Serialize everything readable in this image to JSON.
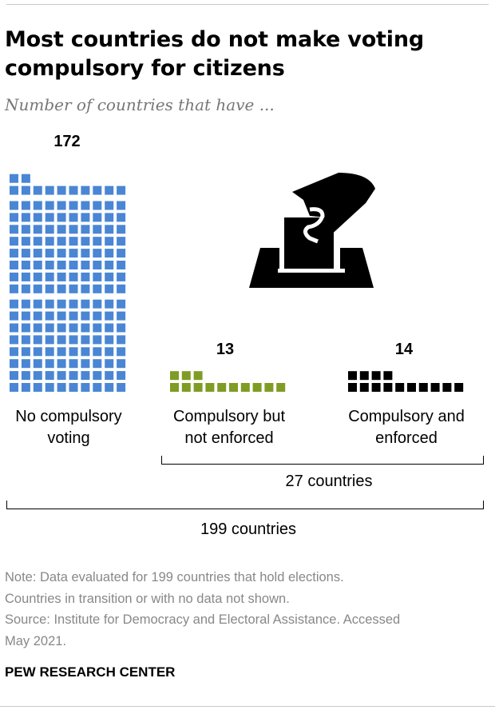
{
  "title": "Most countries do not make voting compulsory for citizens",
  "subtitle": "Number of countries that have ...",
  "chart_data": {
    "type": "waffle",
    "categories": [
      "No compulsory voting",
      "Compulsory but not enforced",
      "Compulsory and enforced"
    ],
    "values": [
      172,
      13,
      14
    ],
    "value_labels": [
      "172",
      "13",
      "14"
    ],
    "label_lines": [
      [
        "No compulsory",
        "voting"
      ],
      [
        "Compulsory but",
        "not enforced"
      ],
      [
        "Compulsory and",
        "enforced"
      ]
    ],
    "colors": [
      "#4a86d4",
      "#7f9c24",
      "#000000"
    ],
    "groups": [
      {
        "label": "27 countries",
        "value": 27,
        "covers": [
          "Compulsory but not enforced",
          "Compulsory and enforced"
        ]
      },
      {
        "label": "199 countries",
        "value": 199,
        "covers": [
          "No compulsory voting",
          "Compulsory but not enforced",
          "Compulsory and enforced"
        ]
      }
    ]
  },
  "icon": "ballot-box-icon",
  "notes": {
    "line1": "Note: Data evaluated for 199 countries that hold elections.",
    "line2": "Countries in transition or with no data not shown.",
    "line3": "Source: Institute for Democracy and Electoral Assistance. Accessed",
    "line4": "May 2021."
  },
  "source_org": "PEW RESEARCH CENTER"
}
